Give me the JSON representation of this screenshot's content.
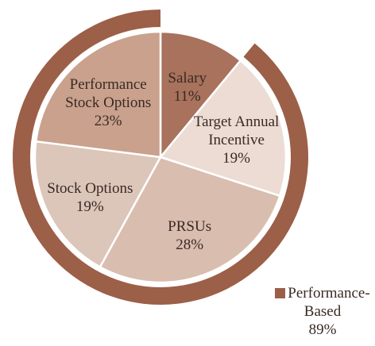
{
  "chart_data": {
    "type": "pie",
    "categories": [
      "Salary",
      "Target Annual Incentive",
      "PRSUs",
      "Stock Options",
      "Performance Stock Options"
    ],
    "values": [
      11,
      19,
      28,
      19,
      23
    ],
    "value_labels": [
      "11%",
      "19%",
      "28%",
      "19%",
      "23%"
    ],
    "colors": [
      "#a8725d",
      "#ecdcd4",
      "#d9bdaf",
      "#dcc5b9",
      "#c9a18d"
    ],
    "ring": {
      "name": "Performance-Based",
      "value": 89,
      "value_label": "89%",
      "color": "#9c5f48"
    }
  }
}
